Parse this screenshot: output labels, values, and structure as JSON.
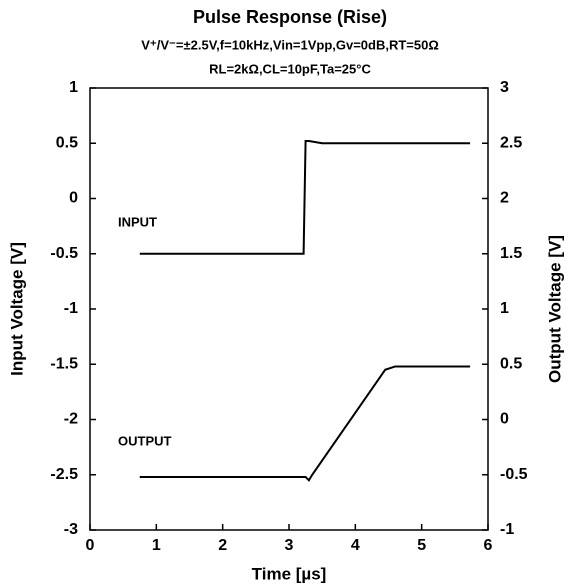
{
  "chart_data": {
    "type": "line",
    "title": "Pulse Response (Rise)",
    "subtitle": [
      "V⁺/V⁻=±2.5V,f=10kHz,Vin=1Vpp,Gv=0dB,RT=50Ω",
      "RL=2kΩ,CL=10pF,Ta=25°C"
    ],
    "x_label": "Time [µs]",
    "y_label": "Input Voltage [V]",
    "y2_label": "Output Voltage [V]",
    "annotations": [
      "INPUT",
      "OUTPUT"
    ],
    "xlim": [
      0,
      6
    ],
    "xticks": [
      0,
      1,
      2,
      3,
      4,
      5,
      6
    ],
    "ylim": [
      -3,
      1
    ],
    "yticks": [
      -3,
      -2.5,
      -2,
      -1.5,
      -1,
      -0.5,
      0,
      0.5,
      1
    ],
    "y2lim": [
      -1,
      3
    ],
    "y2ticks": [
      -1,
      -0.5,
      0,
      0.5,
      1,
      1.5,
      2,
      2.5,
      3
    ],
    "grid": false,
    "series": [
      {
        "name": "INPUT",
        "color": "#000000",
        "axis": "y",
        "x": [
          0.75,
          3.22,
          3.25,
          3.3,
          3.5,
          5.73
        ],
        "values": [
          -0.5,
          -0.5,
          0.52,
          0.52,
          0.5,
          0.5
        ]
      },
      {
        "name": "OUTPUT",
        "color": "#000000",
        "axis": "y2",
        "x": [
          0.75,
          3.25,
          3.3,
          3.35,
          4.45,
          4.6,
          5.73
        ],
        "values": [
          -0.52,
          -0.52,
          -0.55,
          -0.5,
          0.45,
          0.48,
          0.48
        ]
      }
    ]
  }
}
